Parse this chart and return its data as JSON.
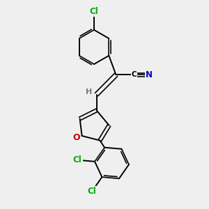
{
  "bg_color": "#efefef",
  "bond_color": "#000000",
  "atom_colors": {
    "Cl": "#00aa00",
    "N": "#0000cc",
    "O": "#cc0000",
    "H": "#777777",
    "C": "#000000"
  },
  "figsize": [
    3.0,
    3.0
  ],
  "dpi": 100,
  "xlim": [
    0,
    10
  ],
  "ylim": [
    0,
    10
  ]
}
